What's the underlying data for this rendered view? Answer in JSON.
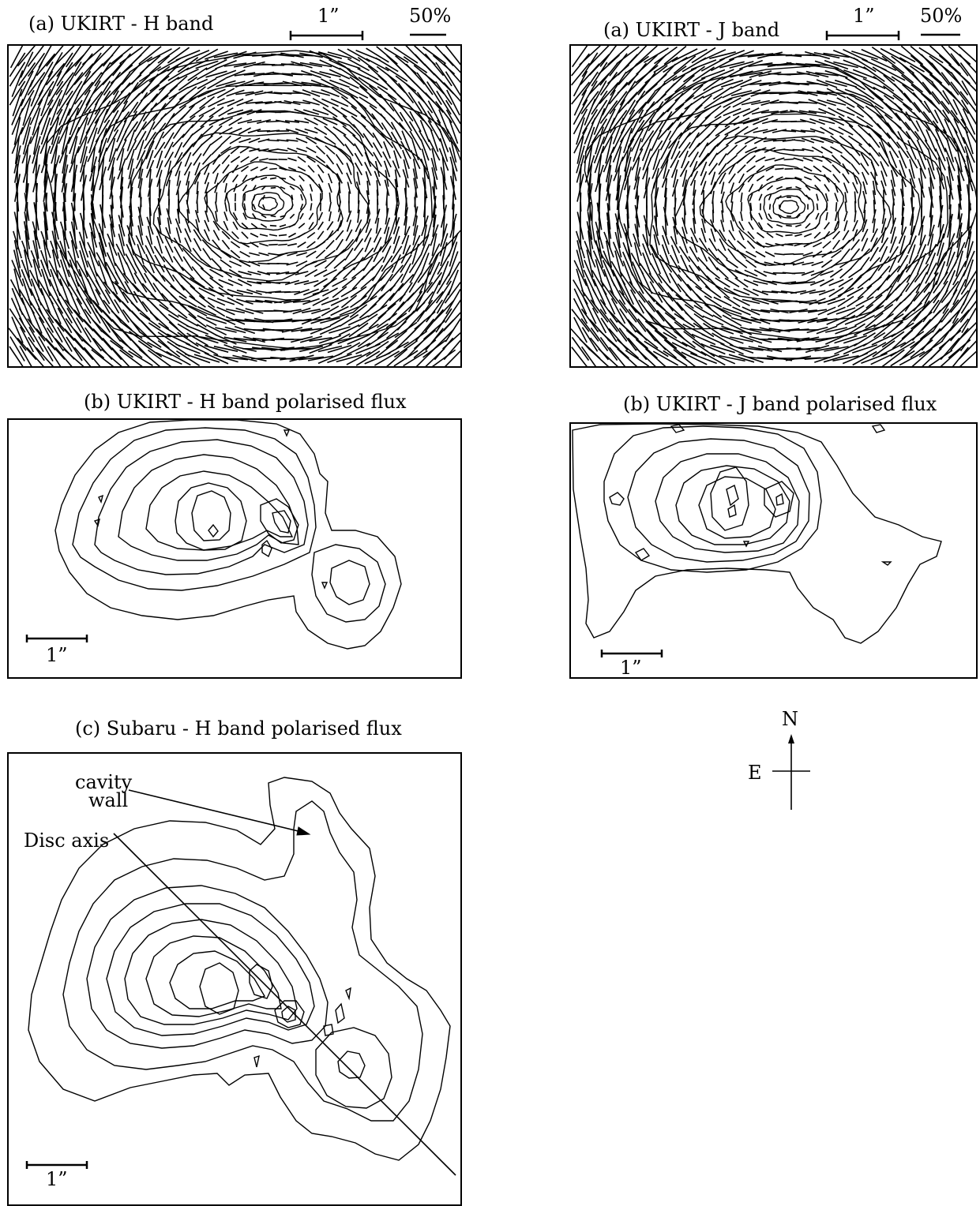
{
  "panels": {
    "ukirt_h": {
      "title": "(a) UKIRT - H band",
      "scale_angular": "1”",
      "scale_percent": "50%"
    },
    "ukirt_j": {
      "title": "(a) UKIRT - J band",
      "scale_angular": "1”",
      "scale_percent": "50%"
    },
    "ukirt_h_flux": {
      "title": "(b) UKIRT - H band polarised flux",
      "scale_angular": "1”"
    },
    "ukirt_j_flux": {
      "title": "(b) UKIRT - J band polarised flux",
      "scale_angular": "1”"
    },
    "subaru_h_flux": {
      "title": "(c) Subaru - H band polarised flux",
      "scale_angular": "1”",
      "annotation_cavity_line1": "cavity",
      "annotation_cavity_line2": "wall",
      "annotation_disc_axis": "Disc axis"
    }
  },
  "compass": {
    "north": "N",
    "east": "E"
  }
}
